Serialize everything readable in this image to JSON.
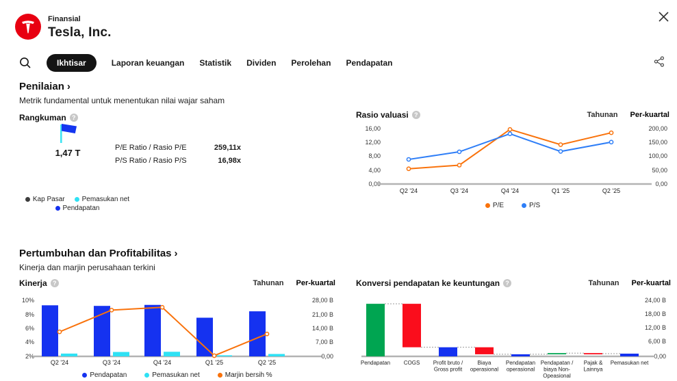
{
  "header": {
    "app_label": "Finansial",
    "company": "Tesla, Inc."
  },
  "icons": {
    "chevron_right": "›",
    "help": "?"
  },
  "nav": {
    "tabs": [
      {
        "label": "Ikhtisar",
        "active": true
      },
      {
        "label": "Laporan keuangan",
        "active": false
      },
      {
        "label": "Statistik",
        "active": false
      },
      {
        "label": "Dividen",
        "active": false
      },
      {
        "label": "Perolehan",
        "active": false
      },
      {
        "label": "Pendapatan",
        "active": false
      }
    ]
  },
  "toggle": {
    "annual": "Tahunan",
    "quarterly": "Per-kuartal"
  },
  "sections": {
    "valuation": {
      "title": "Penilaian",
      "subtitle": "Metrik fundamental untuk menentukan nilai wajar saham"
    },
    "growth": {
      "title": "Pertumbuhan dan Profitabilitas",
      "subtitle": "Kinerja dan marjin perusahaan terkini"
    }
  },
  "summary_card": {
    "title": "Rangkuman",
    "market_cap": "1,47 T",
    "rows": [
      {
        "label": "P/E Ratio / Rasio P/E",
        "value": "259,11x"
      },
      {
        "label": "P/S Ratio / Rasio P/S",
        "value": "16,98x"
      }
    ],
    "legend": [
      {
        "label": "Kap Pasar",
        "color": "#3d3d3d"
      },
      {
        "label": "Pemasukan net",
        "color": "#2fe1f4"
      },
      {
        "label": "Pendapatan",
        "color": "#1532f0"
      }
    ]
  },
  "colors": {
    "blue": "#1532f0",
    "cyan": "#2fe1f4",
    "orange": "#f9720b",
    "green": "#00a551",
    "red": "#fa0d1c",
    "line_blue": "#2e7ef7",
    "tesla_red": "#e80011",
    "axis": "#b3b3b3"
  },
  "chart_data": [
    {
      "id": "valuation_ratios",
      "type": "line",
      "title": "Rasio valuasi",
      "categories": [
        "Q2 '24",
        "Q3 '24",
        "Q4 '24",
        "Q1 '25",
        "Q2 '25"
      ],
      "left_axis": {
        "ticks": [
          "16,00",
          "12,00",
          "8,00",
          "4,00",
          "0,00"
        ],
        "max": 16
      },
      "right_axis": {
        "ticks": [
          "200,00",
          "150,00",
          "100,00",
          "50,00",
          "0,00"
        ],
        "max": 200
      },
      "series": [
        {
          "name": "P/E",
          "axis": "right",
          "color": "#f9720b",
          "values": [
            55,
            68,
            197,
            142,
            185
          ]
        },
        {
          "name": "P/S",
          "axis": "left",
          "color": "#2e7ef7",
          "values": [
            7.1,
            9.3,
            14.5,
            9.4,
            12.1
          ]
        }
      ],
      "legend": [
        {
          "label": "P/E",
          "color": "#f9720b"
        },
        {
          "label": "P/S",
          "color": "#2e7ef7"
        }
      ],
      "legend_position": "bottom-center",
      "grid": false
    },
    {
      "id": "performance",
      "type": "bar-line",
      "title": "Kinerja",
      "categories": [
        "Q2 '24",
        "Q3 '24",
        "Q4 '24",
        "Q1 '25",
        "Q2 '25"
      ],
      "left_axis": {
        "ticks": [
          "10%",
          "8%",
          "6%",
          "4%",
          "2%"
        ],
        "min": 2,
        "max": 10
      },
      "right_axis": {
        "ticks": [
          "28,00 B",
          "21,00 B",
          "14,00 B",
          "7,00 B",
          "0,00"
        ],
        "max": 28
      },
      "bars": [
        {
          "name": "Pendapatan",
          "color": "#1532f0",
          "unit": "B",
          "values": [
            25.5,
            25.2,
            25.7,
            19.3,
            22.5
          ]
        },
        {
          "name": "Pemasukan net",
          "color": "#2fe1f4",
          "unit": "B",
          "values": [
            1.4,
            2.2,
            2.3,
            0.4,
            1.2
          ]
        }
      ],
      "line": {
        "name": "Marjin bersih %",
        "color": "#f9720b",
        "unit": "%",
        "values": [
          5.5,
          8.6,
          9.0,
          2.1,
          5.2
        ]
      },
      "legend": [
        {
          "label": "Pendapatan",
          "color": "#1532f0"
        },
        {
          "label": "Pemasukan net",
          "color": "#2fe1f4"
        },
        {
          "label": "Marjin bersih %",
          "color": "#f9720b"
        }
      ],
      "legend_position": "bottom-center",
      "grid": false
    },
    {
      "id": "conversion",
      "type": "waterfall",
      "title": "Konversi pendapatan ke keuntungan",
      "right_axis": {
        "ticks": [
          "24,00 B",
          "18,00 B",
          "12,00 B",
          "6,00 B",
          "0,00"
        ],
        "max": 24
      },
      "unit": "B",
      "bars": [
        {
          "label_lines": [
            "Pendapatan"
          ],
          "from": 0,
          "to": 22.5,
          "color": "#00a551"
        },
        {
          "label_lines": [
            "COGS"
          ],
          "from": 3.9,
          "to": 22.5,
          "color": "#fa0d1c"
        },
        {
          "label_lines": [
            "Profit bruto /",
            "Gross profit"
          ],
          "from": 0,
          "to": 3.9,
          "color": "#1532f0"
        },
        {
          "label_lines": [
            "Biaya",
            "operasional"
          ],
          "from": 0.9,
          "to": 3.9,
          "color": "#fa0d1c"
        },
        {
          "label_lines": [
            "Pendapatan",
            "operasional"
          ],
          "from": 0,
          "to": 0.9,
          "color": "#1532f0"
        },
        {
          "label_lines": [
            "Pendapatan /",
            "biaya Non-",
            "Opeasional"
          ],
          "from": 0.9,
          "to": 1.4,
          "color": "#00a551"
        },
        {
          "label_lines": [
            "Pajak &",
            "Lainnya"
          ],
          "from": 1.17,
          "to": 1.4,
          "color": "#fa0d1c"
        },
        {
          "label_lines": [
            "Pemasukan net"
          ],
          "from": 0,
          "to": 1.17,
          "color": "#1532f0"
        }
      ],
      "connector_levels": [
        22.5,
        3.9,
        3.9,
        0.9,
        0.9,
        1.4,
        1.17
      ],
      "grid": false
    }
  ]
}
